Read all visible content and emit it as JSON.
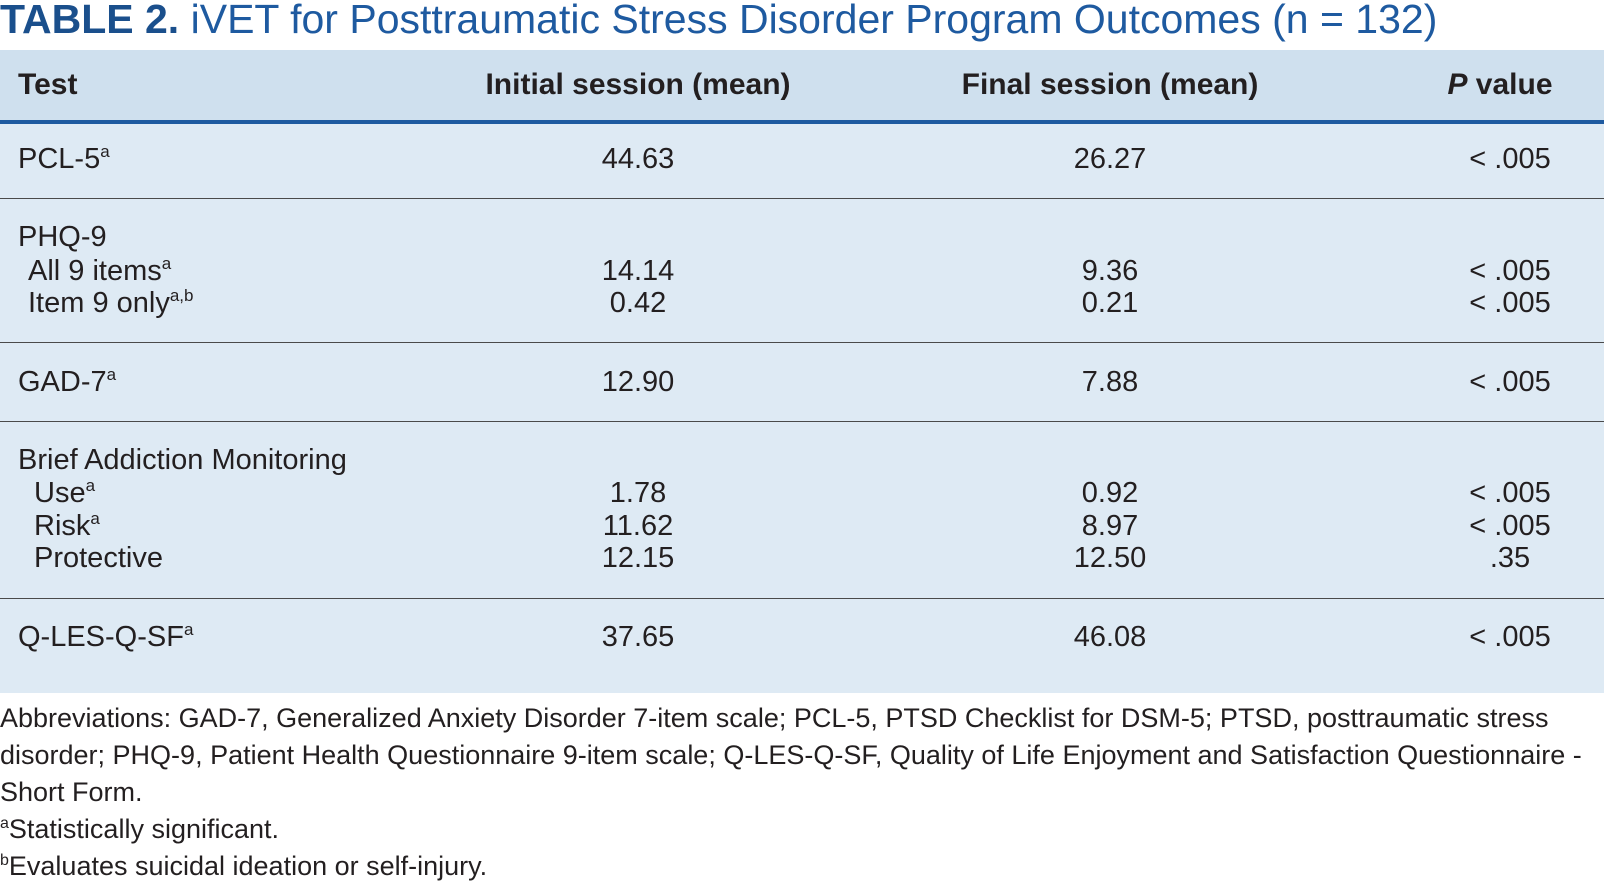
{
  "title": {
    "label": "TABLE 2.",
    "text": "iVET for Posttraumatic Stress Disorder Program Outcomes (n = 132)"
  },
  "headers": {
    "test": "Test",
    "initial": "Initial session (mean)",
    "final": "Final session (mean)",
    "p_italic": "P",
    "p_rest": " value"
  },
  "rows": {
    "pcl5": {
      "label": "PCL-5",
      "sup": "a",
      "initial": "44.63",
      "final": "26.27",
      "p": "< .005"
    },
    "phq9": {
      "label": "PHQ-9",
      "all": {
        "label": "All 9 items",
        "sup": "a",
        "initial": "14.14",
        "final": "9.36",
        "p": "< .005"
      },
      "item9": {
        "label": "Item 9 only",
        "sup": "a,b",
        "initial": "0.42",
        "final": "0.21",
        "p": "< .005"
      }
    },
    "gad7": {
      "label": "GAD-7",
      "sup": "a",
      "initial": "12.90",
      "final": "7.88",
      "p": "< .005"
    },
    "bam": {
      "label": "Brief Addiction Monitoring",
      "use": {
        "label": "Use",
        "sup": "a",
        "initial": "1.78",
        "final": "0.92",
        "p": "< .005"
      },
      "risk": {
        "label": "Risk",
        "sup": "a",
        "initial": "11.62",
        "final": "8.97",
        "p": "< .005"
      },
      "protective": {
        "label": "Protective",
        "initial": "12.15",
        "final": "12.50",
        "p": ".35"
      }
    },
    "qles": {
      "label": "Q-LES-Q-SF",
      "sup": "a",
      "initial": "37.65",
      "final": "46.08",
      "p": "< .005"
    }
  },
  "notes": {
    "abbreviations": "Abbreviations: GAD-7, Generalized Anxiety Disorder 7-item scale; PCL-5, PTSD Checklist for DSM-5; PTSD, posttraumatic stress disorder; PHQ-9, Patient Health Questionnaire 9-item scale; Q-LES-Q-SF, Quality of Life Enjoyment and Satisfaction Questionnaire - Short Form.",
    "a_mark": "a",
    "a_text": "Statistically significant.",
    "b_mark": "b",
    "b_text": "Evaluates suicidal ideation or self-injury."
  },
  "colors": {
    "title_blue": "#1e5aa0",
    "header_bg": "#cfe0ee",
    "body_bg": "#deeaf4"
  }
}
